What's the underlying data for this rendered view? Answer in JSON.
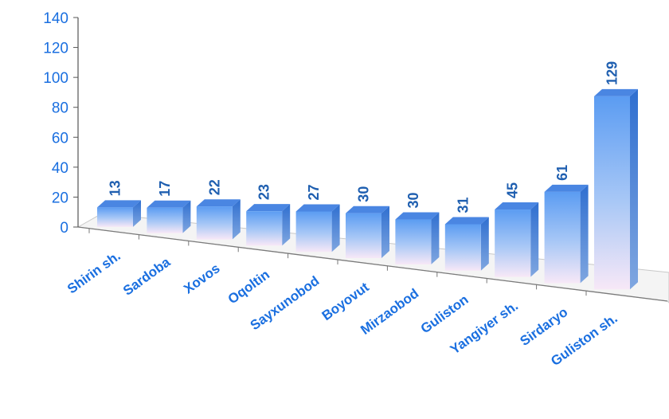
{
  "chart_data": {
    "type": "bar",
    "categories": [
      "Shirin sh.",
      "Sardoba",
      "Xovos",
      "Oqoltin",
      "Sayxunobod",
      "Boyovut",
      "Mirzaobod",
      "Guliston",
      "Yangiyer sh.",
      "Sirdaryo",
      "Guliston sh."
    ],
    "values": [
      13,
      17,
      22,
      23,
      27,
      30,
      30,
      31,
      45,
      61,
      129
    ],
    "yticks": [
      0,
      20,
      40,
      60,
      80,
      100,
      120,
      140
    ],
    "ylim": [
      0,
      140
    ],
    "grid": false,
    "legend": "none",
    "colors": {
      "bar_top": "#5b9cf2",
      "bar_bottom": "#f7e8f7",
      "text": "#1a6fe0",
      "data_label": "#1f5fb0"
    }
  }
}
